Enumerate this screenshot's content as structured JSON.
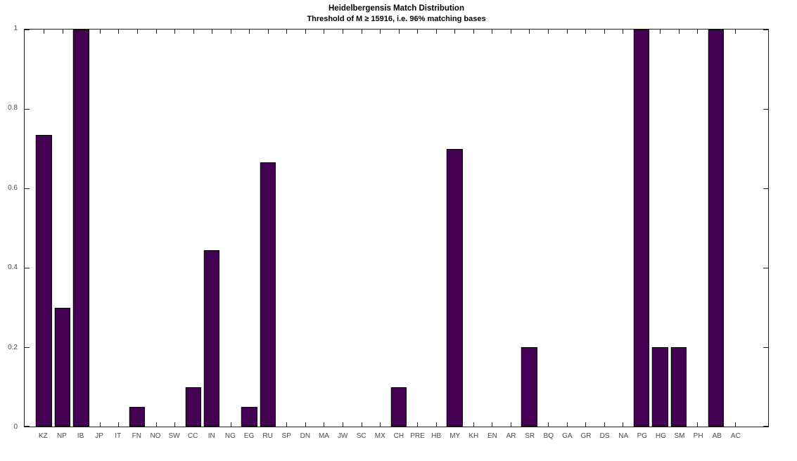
{
  "chart_data": {
    "type": "bar",
    "title": "Heidelbergensis Match Distribution",
    "subtitle": "Threshold of M ≥ 15916, i.e. 96% matching bases",
    "categories": [
      "KZ",
      "NP",
      "IB",
      "JP",
      "IT",
      "FN",
      "NO",
      "SW",
      "CC",
      "IN",
      "NG",
      "EG",
      "RU",
      "SP",
      "DN",
      "MA",
      "JW",
      "SC",
      "MX",
      "CH",
      "PRE",
      "HB",
      "MY",
      "KH",
      "EN",
      "AR",
      "SR",
      "BQ",
      "GA",
      "GR",
      "DS",
      "NA",
      "PG",
      "HG",
      "SM",
      "PH",
      "AB",
      "AC"
    ],
    "values": [
      0.735,
      0.3,
      1.0,
      0,
      0,
      0.05,
      0,
      0,
      0.1,
      0.445,
      0,
      0.05,
      0.665,
      0,
      0,
      0,
      0,
      0,
      0,
      0.1,
      0,
      0,
      0.7,
      0,
      0,
      0,
      0.2,
      0,
      0,
      0,
      0,
      0,
      1.0,
      0.2,
      0.2,
      0,
      1.0,
      0
    ],
    "xlabel": "",
    "ylabel": "",
    "ylim": [
      0,
      1
    ],
    "yticks": [
      0,
      0.2,
      0.4,
      0.6,
      0.8,
      1
    ],
    "ytick_labels": [
      "0",
      "0.2",
      "0.4",
      "0.6",
      "0.8",
      "1"
    ],
    "grid": false,
    "legend_position": "none",
    "colors": {
      "bar_fill": "#440154",
      "bar_edge": "#000000",
      "axis": "#1f1f1f",
      "tick_label": "#4a4a4a",
      "title": "#000000",
      "background": "#ffffff"
    }
  }
}
